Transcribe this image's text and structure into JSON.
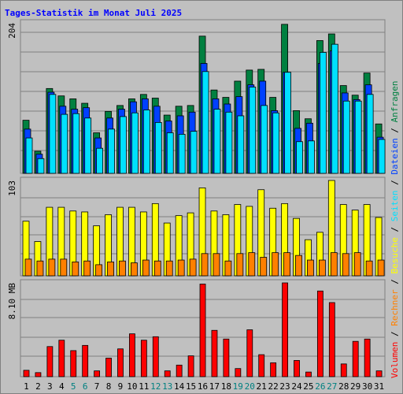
{
  "title": "Tages-Statistik im Monat Juli 2025",
  "colors": {
    "background": "#c0c0c0",
    "border": "#808080",
    "grid": "#808080",
    "title": "#0000ff",
    "anfragen": "#008040",
    "dateien": "#0040ff",
    "seiten": "#00e0ff",
    "besuche": "#ffff00",
    "rechner": "#ff8000",
    "volumen": "#ff0000",
    "weekend_label": "#008080",
    "day_label": "#000000"
  },
  "right_labels": {
    "volumen": "Volumen",
    "sep1": " / ",
    "rechner": "Rechner",
    "sep2": " / ",
    "besuche": "Besuche",
    "sep3": " / ",
    "seiten": "Seiten",
    "sep4": " / ",
    "dateien": "Dateien",
    "sep5": " / ",
    "anfragen": "Anfragen"
  },
  "chart_data": [
    {
      "type": "bar",
      "panel": "hits",
      "ymax_label": "204",
      "ylim": [
        0,
        204
      ],
      "categories": [
        "1",
        "2",
        "3",
        "4",
        "5",
        "6",
        "7",
        "8",
        "9",
        "10",
        "11",
        "12",
        "13",
        "14",
        "15",
        "16",
        "17",
        "18",
        "19",
        "20",
        "21",
        "22",
        "23",
        "24",
        "25",
        "26",
        "27",
        "28",
        "29",
        "30",
        "31"
      ],
      "weekend_days": [
        "5",
        "6",
        "12",
        "13",
        "19",
        "20",
        "26",
        "27"
      ],
      "series": [
        {
          "name": "Anfragen",
          "values": [
            72,
            30,
            115,
            105,
            101,
            95,
            55,
            84,
            92,
            101,
            107,
            102,
            79,
            91,
            92,
            186,
            113,
            103,
            125,
            140,
            141,
            103,
            202,
            85,
            74,
            180,
            189,
            119,
            106,
            136,
            67
          ]
        },
        {
          "name": "Dateien",
          "values": [
            60,
            26,
            110,
            91,
            87,
            89,
            48,
            75,
            87,
            97,
            101,
            91,
            71,
            78,
            83,
            149,
            101,
            94,
            104,
            120,
            125,
            85,
            137,
            61,
            68,
            149,
            166,
            109,
            100,
            120,
            49
          ]
        },
        {
          "name": "Seiten",
          "values": [
            48,
            20,
            107,
            80,
            81,
            75,
            34,
            60,
            77,
            82,
            86,
            69,
            55,
            53,
            57,
            138,
            87,
            83,
            78,
            117,
            92,
            82,
            137,
            43,
            44,
            164,
            175,
            98,
            98,
            107,
            46
          ]
        }
      ]
    },
    {
      "type": "bar",
      "panel": "visits",
      "ymax_label": "103",
      "ylim": [
        0,
        103
      ],
      "categories": [
        "1",
        "2",
        "3",
        "4",
        "5",
        "6",
        "7",
        "8",
        "9",
        "10",
        "11",
        "12",
        "13",
        "14",
        "15",
        "16",
        "17",
        "18",
        "19",
        "20",
        "21",
        "22",
        "23",
        "24",
        "25",
        "26",
        "27",
        "28",
        "29",
        "30",
        "31"
      ],
      "series": [
        {
          "name": "Besuche",
          "values": [
            59,
            37,
            74,
            74,
            70,
            69,
            54,
            66,
            74,
            74,
            69,
            78,
            57,
            65,
            68,
            95,
            70,
            66,
            77,
            75,
            93,
            73,
            78,
            62,
            39,
            47,
            103,
            77,
            71,
            77,
            63
          ]
        },
        {
          "name": "Rechner",
          "values": [
            18,
            16,
            18,
            18,
            15,
            16,
            12,
            15,
            16,
            14,
            17,
            16,
            16,
            17,
            18,
            24,
            24,
            16,
            24,
            25,
            20,
            25,
            25,
            22,
            17,
            17,
            25,
            24,
            25,
            16,
            17
          ]
        }
      ]
    },
    {
      "type": "bar",
      "panel": "volume",
      "ymax_label": "8.10 MB",
      "ylim": [
        0,
        8.1
      ],
      "categories": [
        "1",
        "2",
        "3",
        "4",
        "5",
        "6",
        "7",
        "8",
        "9",
        "10",
        "11",
        "12",
        "13",
        "14",
        "15",
        "16",
        "17",
        "18",
        "19",
        "20",
        "21",
        "22",
        "23",
        "24",
        "25",
        "26",
        "27",
        "28",
        "29",
        "30",
        "31"
      ],
      "series": [
        {
          "name": "Volumen",
          "values": [
            0.55,
            0.35,
            2.6,
            3.15,
            2.25,
            2.7,
            0.5,
            1.6,
            2.4,
            3.7,
            3.15,
            3.45,
            0.5,
            1.0,
            1.8,
            8.0,
            4.0,
            3.25,
            0.7,
            4.05,
            1.9,
            1.2,
            8.1,
            1.4,
            0.4,
            7.4,
            6.4,
            1.1,
            3.05,
            3.25,
            0.5
          ]
        }
      ]
    }
  ]
}
